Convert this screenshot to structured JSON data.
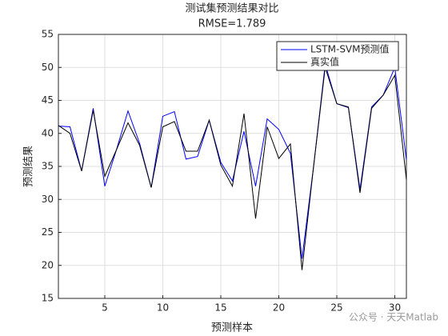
{
  "chart_data": {
    "type": "line",
    "title": "测试集预测结果对比",
    "subtitle": "RMSE=1.789",
    "x_label": "预测样本",
    "y_label": "预测结果",
    "watermark": "公众号 · 天天Matlab",
    "x": [
      1,
      2,
      3,
      4,
      5,
      6,
      7,
      8,
      9,
      10,
      11,
      12,
      13,
      14,
      15,
      16,
      17,
      18,
      19,
      20,
      21,
      22,
      23,
      24,
      25,
      26,
      27,
      28,
      29,
      30,
      31
    ],
    "series": [
      {
        "name": "LSTM-SVM预测值",
        "color": "#0000ff",
        "values": [
          41.1,
          41.0,
          34.3,
          43.8,
          32.0,
          37.5,
          43.4,
          38.5,
          31.8,
          42.6,
          43.3,
          36.1,
          36.5,
          42.0,
          35.6,
          32.8,
          40.3,
          32.0,
          42.2,
          40.6,
          37.0,
          21.0,
          35.0,
          50.5,
          44.5,
          43.9,
          31.5,
          44.0,
          45.8,
          50.0,
          36.0
        ]
      },
      {
        "name": "真实值",
        "color": "#000000",
        "values": [
          41.2,
          40.0,
          34.3,
          43.5,
          33.5,
          37.5,
          41.6,
          38.2,
          31.8,
          41.0,
          41.8,
          37.3,
          37.3,
          42.0,
          35.2,
          32.0,
          43.0,
          27.1,
          41.0,
          36.2,
          38.4,
          19.3,
          35.0,
          50.0,
          44.5,
          44.0,
          31.0,
          43.8,
          45.8,
          48.8,
          33.0
        ]
      }
    ],
    "xlim": [
      1,
      31
    ],
    "xticks": [
      5,
      10,
      15,
      20,
      25,
      30
    ],
    "ylim": [
      15,
      55
    ],
    "yticks": [
      15,
      20,
      25,
      30,
      35,
      40,
      45,
      50,
      55
    ],
    "grid": true,
    "legend": "top-right"
  }
}
